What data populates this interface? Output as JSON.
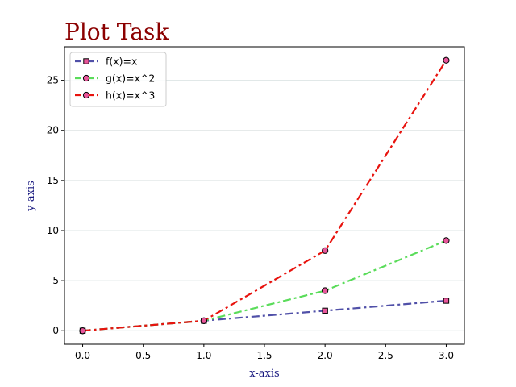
{
  "chart_data": {
    "type": "line",
    "title": "Plot Task",
    "xlabel": "x-axis",
    "ylabel": "y-axis",
    "x": [
      0,
      1,
      2,
      3
    ],
    "xlim": [
      -0.15,
      3.15
    ],
    "ylim": [
      -1.35,
      28.35
    ],
    "xticks": [
      0.0,
      0.5,
      1.0,
      1.5,
      2.0,
      2.5,
      3.0
    ],
    "xtick_labels": [
      "0.0",
      "0.5",
      "1.0",
      "1.5",
      "2.0",
      "2.5",
      "3.0"
    ],
    "yticks": [
      0,
      5,
      10,
      15,
      20,
      25
    ],
    "ytick_labels": [
      "0",
      "5",
      "10",
      "15",
      "20",
      "25"
    ],
    "grid": "horizontal",
    "legend_position": "top-left",
    "series": [
      {
        "name": "f(x)=x",
        "values": [
          0,
          1,
          2,
          3
        ],
        "color": "#5050a8",
        "marker": "square",
        "marker_face": "#e8559a",
        "line_style": "dash-dot"
      },
      {
        "name": "g(x)=x^2",
        "values": [
          0,
          1,
          4,
          9
        ],
        "color": "#5adc5a",
        "marker": "circle",
        "marker_face": "#e8559a",
        "line_style": "dash-dot"
      },
      {
        "name": "h(x)=x^3",
        "values": [
          0,
          1,
          8,
          27
        ],
        "color": "#e8130e",
        "marker": "circle",
        "marker_face": "#e8559a",
        "line_style": "dash-dot"
      }
    ],
    "colors": {
      "title": "#8b0000",
      "axis_label": "#1a1a80",
      "grid": "#dde4e4"
    }
  }
}
